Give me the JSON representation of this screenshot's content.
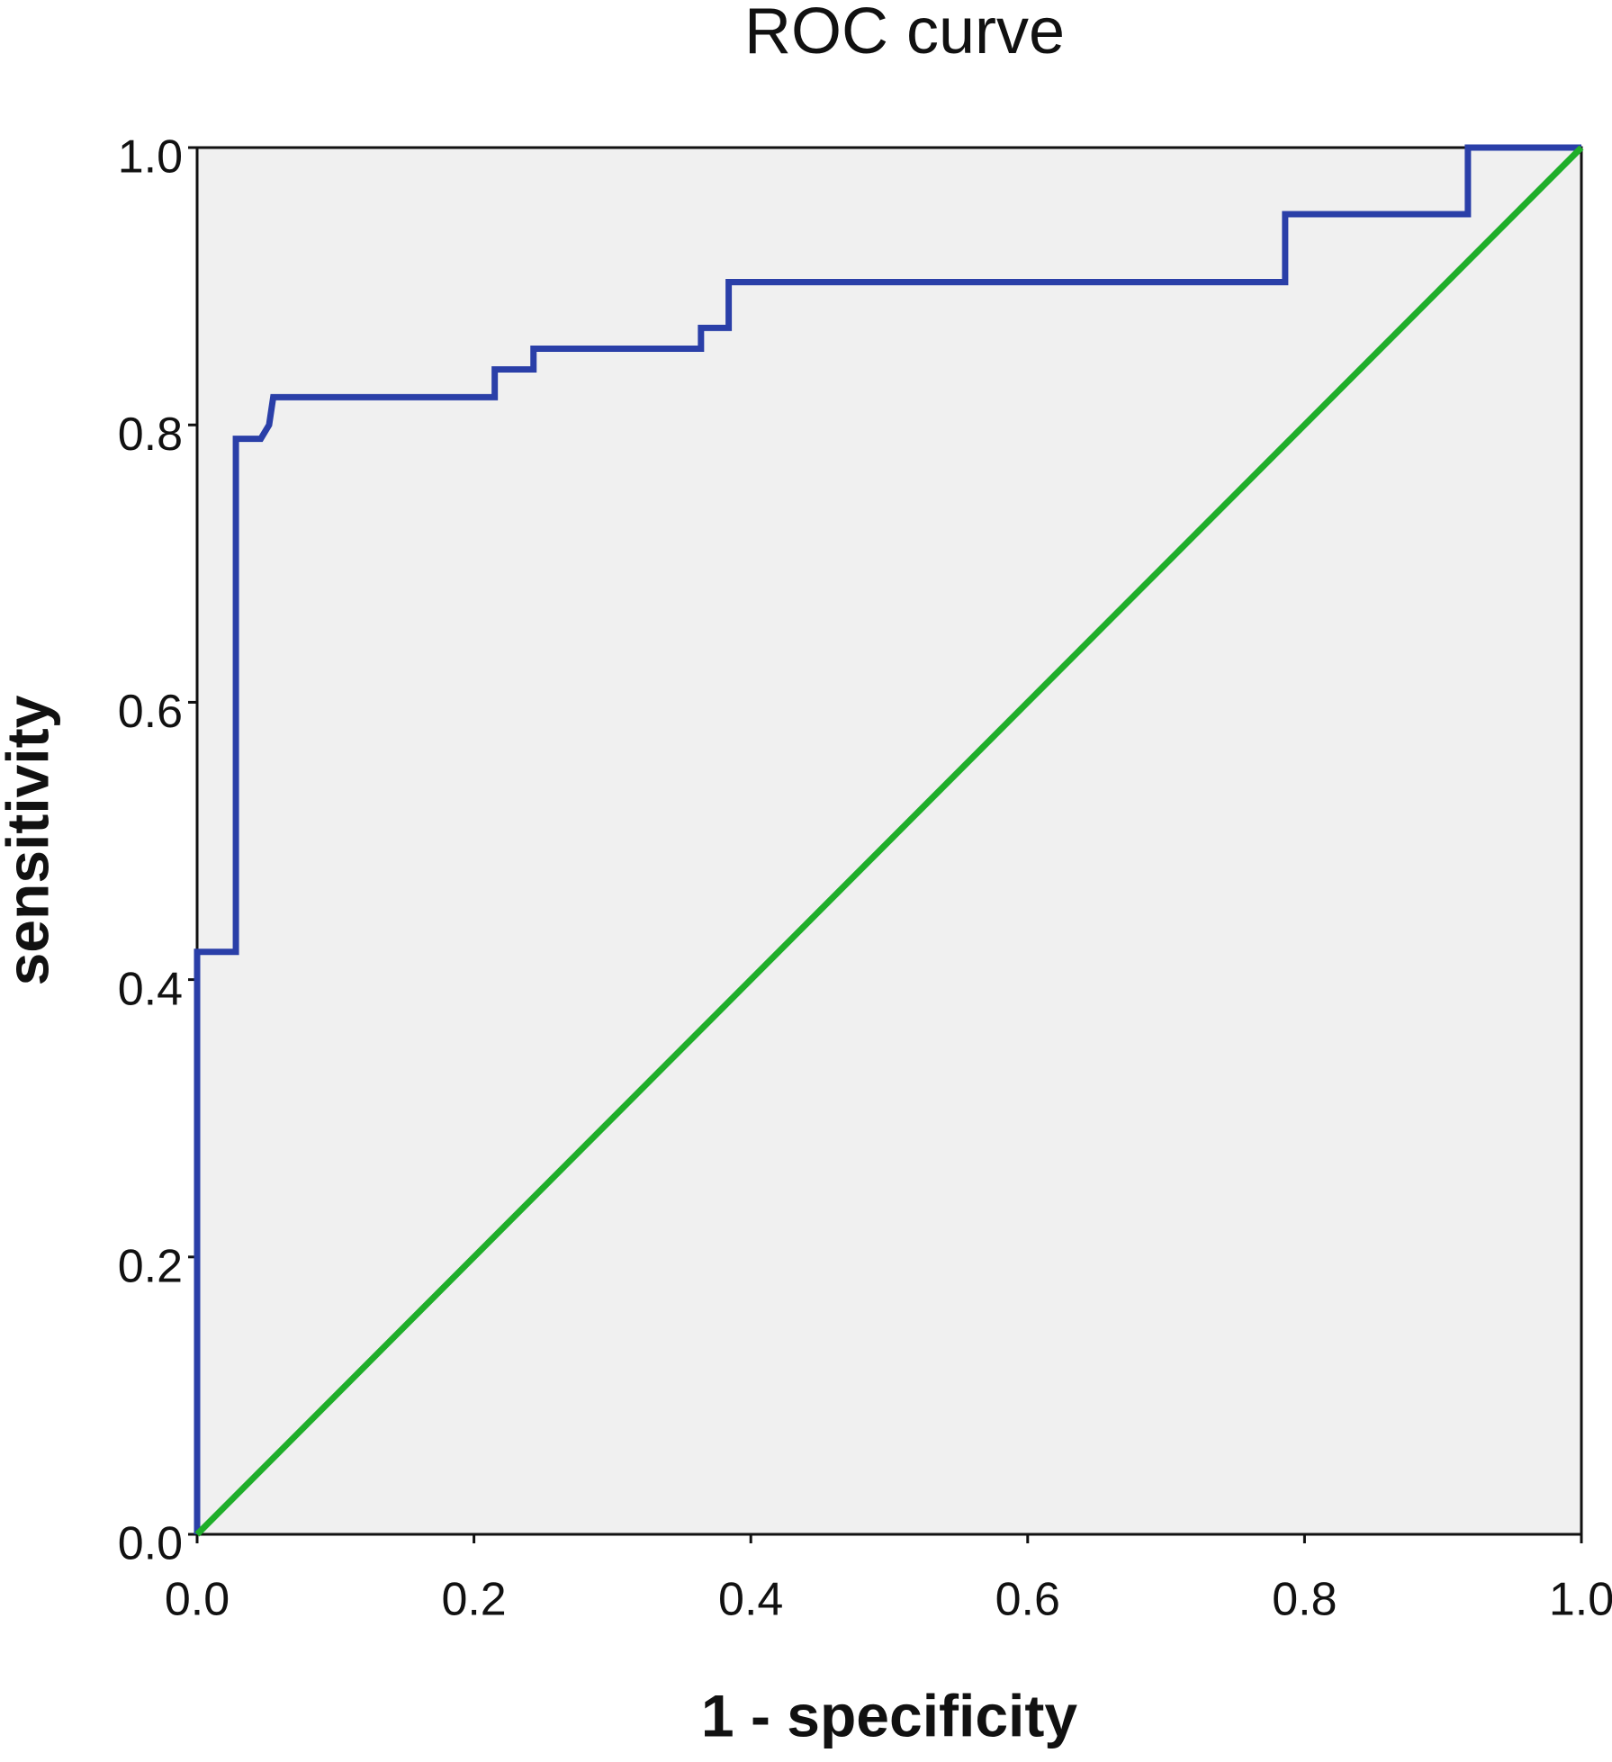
{
  "chart_data": {
    "type": "line",
    "title": "ROC curve",
    "x_label": "1 - specificity",
    "y_label": "sensitivity",
    "xlim": [
      0,
      1
    ],
    "ylim": [
      0,
      1
    ],
    "xticks": [
      {
        "value": 0,
        "label": "0.0"
      },
      {
        "value": 0.2,
        "label": "0.2"
      },
      {
        "value": 0.4,
        "label": "0.4"
      },
      {
        "value": 0.6,
        "label": "0.6"
      },
      {
        "value": 0.8,
        "label": "0.8"
      },
      {
        "value": 1,
        "label": "1.0"
      }
    ],
    "yticks": [
      {
        "value": 0,
        "label": "0.0"
      },
      {
        "value": 0.2,
        "label": "0.2"
      },
      {
        "value": 0.4,
        "label": "0.4"
      },
      {
        "value": 0.6,
        "label": "0.6"
      },
      {
        "value": 0.8,
        "label": "0.8"
      },
      {
        "value": 1,
        "label": "1.0"
      }
    ],
    "grid": false,
    "background": "#f0f0f0",
    "series": [
      {
        "color": "#2a3fa8",
        "x": [
          0,
          0,
          0.028,
          0.028,
          0.046,
          0.052,
          0.055,
          0.215,
          0.215,
          0.243,
          0.243,
          0.364,
          0.364,
          0.384,
          0.384,
          0.786,
          0.786,
          0.918,
          0.918,
          1
        ],
        "values": [
          0,
          0.42,
          0.42,
          0.79,
          0.79,
          0.8,
          0.82,
          0.82,
          0.84,
          0.84,
          0.855,
          0.855,
          0.87,
          0.87,
          0.903,
          0.903,
          0.952,
          0.952,
          1,
          1
        ]
      },
      {
        "color": "#1fae2a",
        "x": [
          0,
          1
        ],
        "values": [
          0,
          1
        ]
      }
    ]
  }
}
